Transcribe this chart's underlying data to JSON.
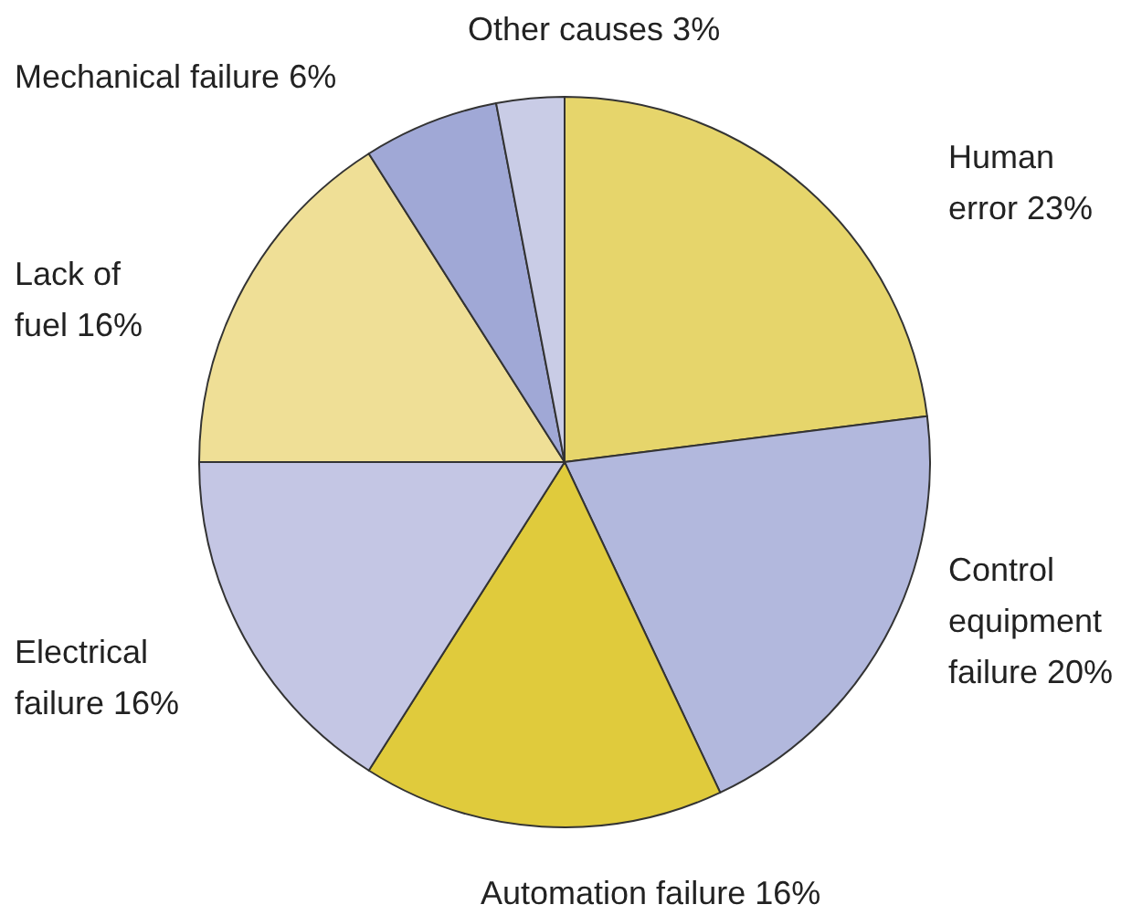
{
  "chart_data": {
    "type": "pie",
    "categories": [
      "Human error",
      "Control equipment failure",
      "Automation failure",
      "Electrical failure",
      "Lack of fuel",
      "Mechanical failure",
      "Other causes"
    ],
    "values": [
      23,
      20,
      16,
      16,
      16,
      6,
      3
    ],
    "value_labels": [
      "23%",
      "20%",
      "16%",
      "16%",
      "16%",
      "6%",
      "3%"
    ],
    "colors": [
      "#e6d56b",
      "#b2b8dd",
      "#e0cb3c",
      "#c4c6e4",
      "#efdf96",
      "#a0a8d6",
      "#c9cce6"
    ]
  }
}
